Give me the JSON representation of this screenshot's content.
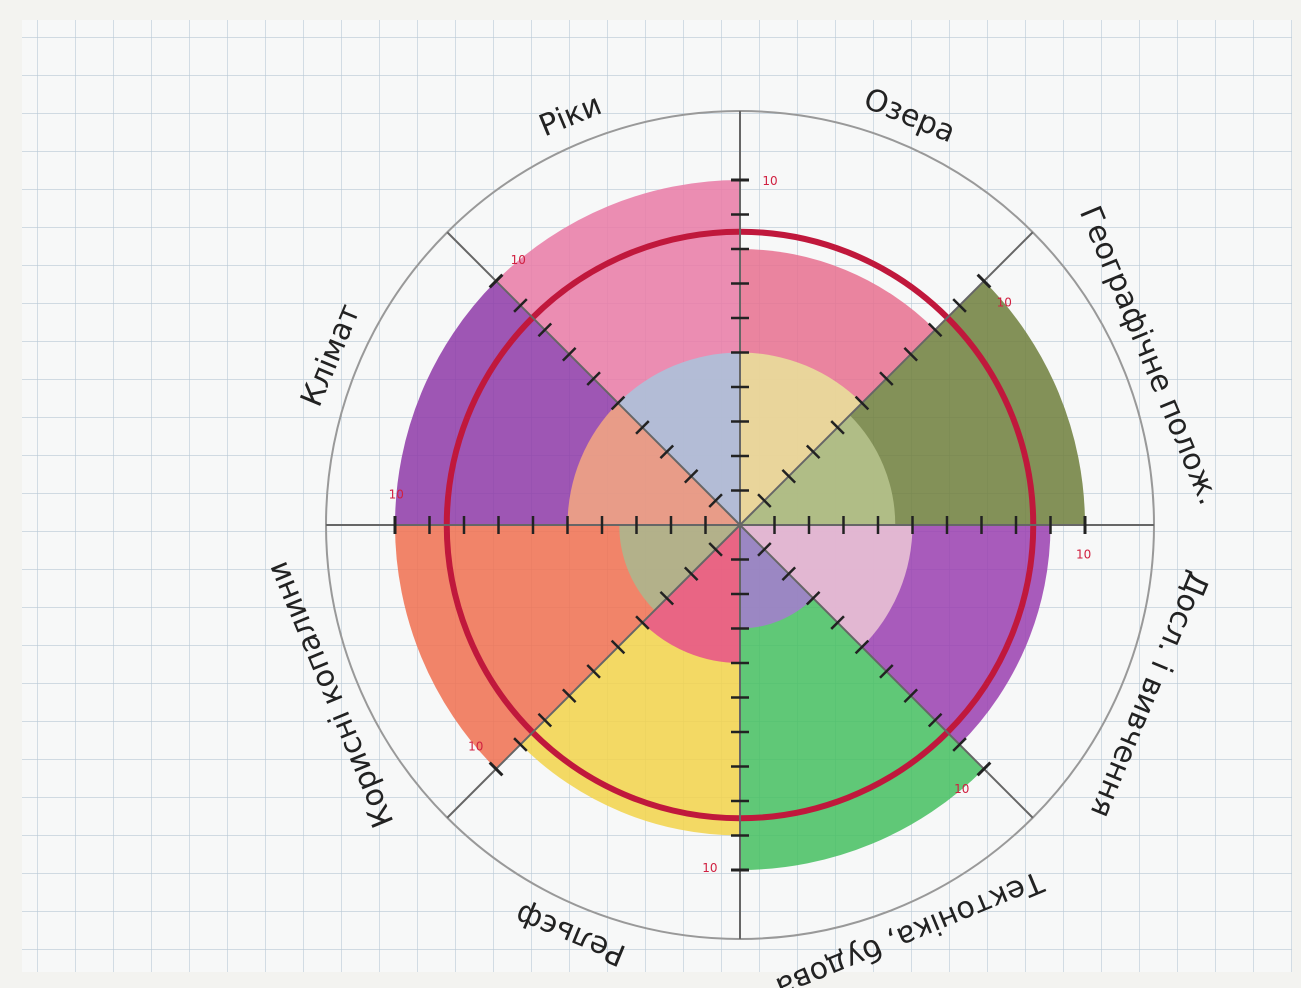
{
  "chart_data": {
    "type": "polar-sectors",
    "categories": [
      "Озера",
      "Географічне полож.",
      "Досл. і вивчення",
      "Тектоніка, будова",
      "Рельєф",
      "Корисні копалини",
      "Клімат",
      "Ріки"
    ],
    "series": [
      {
        "values": [
          8,
          10,
          9,
          10,
          9,
          10,
          10,
          10
        ],
        "colors": [
          "#e8708f",
          "#6f7f3c",
          "#9a3fb0",
          "#45c060",
          "#f2d44a",
          "#f07050",
          "#8e3aa8",
          "#e97aa6"
        ]
      },
      {
        "values": [
          5,
          4.5,
          5,
          3,
          4,
          3.5,
          5,
          5
        ],
        "colors": [
          "#e9e39a",
          "#b9c48e",
          "#ecc8d6",
          "#a67bd0",
          "#e6508a",
          "#a8b890",
          "#f4a880",
          "#a9c4dc"
        ]
      }
    ],
    "rlim": [
      0,
      12
    ],
    "rticks": [
      10
    ],
    "minor_rticks": [
      1,
      2,
      3,
      4,
      5,
      6,
      7,
      8,
      9
    ],
    "reference_circle": 8.5,
    "reference_color": "#c0183c"
  }
}
